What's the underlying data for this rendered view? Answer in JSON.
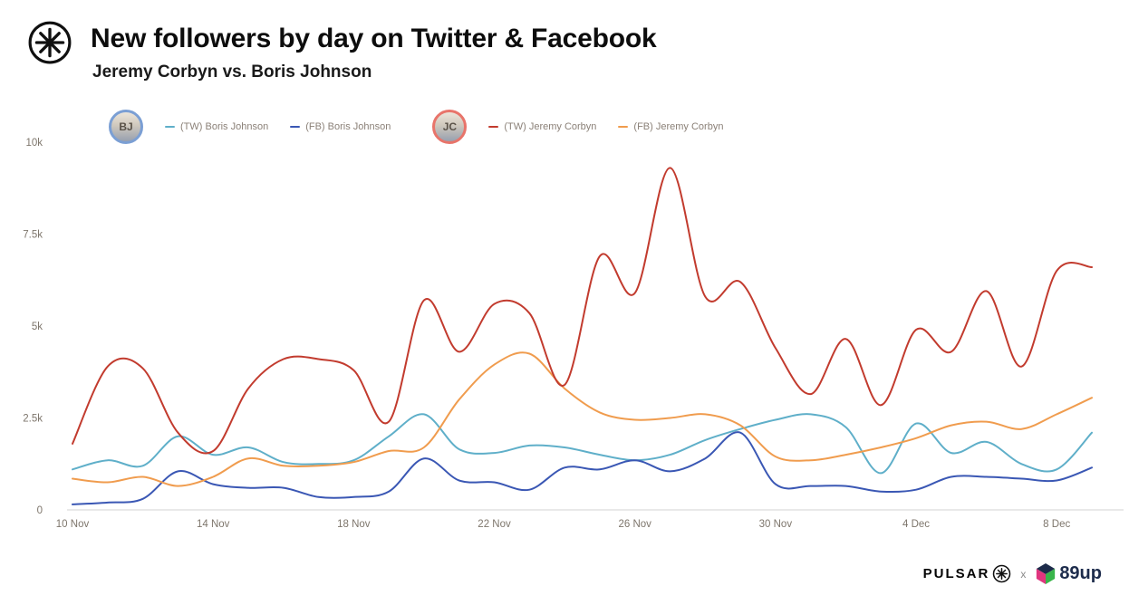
{
  "header": {
    "title": "New followers by day on Twitter & Facebook",
    "subtitle": "Jeremy Corbyn vs. Boris Johnson"
  },
  "legend": {
    "groups": [
      {
        "person": "Boris Johnson",
        "initials": "BJ",
        "ring_color": "#7b9fd4",
        "items": [
          {
            "label": "(TW) Boris Johnson",
            "color": "#5fafc9"
          },
          {
            "label": "(FB) Boris Johnson",
            "color": "#3a57b4"
          }
        ]
      },
      {
        "person": "Jeremy Corbyn",
        "initials": "JC",
        "ring_color": "#e8746a",
        "items": [
          {
            "label": "(TW) Jeremy Corbyn",
            "color": "#c23b2e"
          },
          {
            "label": "(FB) Jeremy Corbyn",
            "color": "#f09c4e"
          }
        ]
      }
    ]
  },
  "footer": {
    "pulsar_label": "PULSAR",
    "separator": "x",
    "partner_label": "89up"
  },
  "chart_data": {
    "type": "line",
    "title": "New followers by day on Twitter & Facebook",
    "subtitle": "Jeremy Corbyn vs. Boris Johnson",
    "grid": false,
    "legend_position": "top",
    "ylim": [
      0,
      10000
    ],
    "y_ticks": [
      0,
      2500,
      5000,
      7500,
      10000
    ],
    "y_tick_labels": [
      "0",
      "2.5k",
      "5k",
      "7.5k",
      "10k"
    ],
    "x_tick_labels": [
      "10 Nov",
      "14 Nov",
      "18 Nov",
      "22 Nov",
      "26 Nov",
      "30 Nov",
      "4 Dec",
      "8 Dec"
    ],
    "x": [
      "10 Nov",
      "11 Nov",
      "12 Nov",
      "13 Nov",
      "14 Nov",
      "15 Nov",
      "16 Nov",
      "17 Nov",
      "18 Nov",
      "19 Nov",
      "20 Nov",
      "21 Nov",
      "22 Nov",
      "23 Nov",
      "24 Nov",
      "25 Nov",
      "26 Nov",
      "27 Nov",
      "28 Nov",
      "29 Nov",
      "30 Nov",
      "1 Dec",
      "2 Dec",
      "3 Dec",
      "4 Dec",
      "5 Dec",
      "6 Dec",
      "7 Dec",
      "8 Dec",
      "9 Dec"
    ],
    "series": [
      {
        "name": "(TW) Boris Johnson",
        "color": "#5fafc9",
        "values": [
          1100,
          1350,
          1200,
          2000,
          1500,
          1700,
          1300,
          1250,
          1350,
          2000,
          2600,
          1650,
          1550,
          1750,
          1700,
          1500,
          1350,
          1500,
          1900,
          2200,
          2450,
          2600,
          2250,
          1000,
          2350,
          1550,
          1850,
          1250,
          1100,
          2100
        ]
      },
      {
        "name": "(FB) Boris Johnson",
        "color": "#3a57b4",
        "values": [
          150,
          200,
          300,
          1050,
          700,
          600,
          600,
          350,
          350,
          500,
          1400,
          800,
          750,
          550,
          1150,
          1100,
          1350,
          1050,
          1400,
          2100,
          700,
          650,
          650,
          500,
          550,
          900,
          900,
          850,
          800,
          1150
        ]
      },
      {
        "name": "(FB) Jeremy Corbyn",
        "color": "#f09c4e",
        "values": [
          850,
          750,
          900,
          650,
          900,
          1400,
          1200,
          1200,
          1300,
          1600,
          1700,
          3000,
          3950,
          4250,
          3300,
          2650,
          2450,
          2500,
          2600,
          2300,
          1450,
          1350,
          1500,
          1700,
          1950,
          2300,
          2400,
          2200,
          2600,
          3050
        ]
      },
      {
        "name": "(TW) Jeremy Corbyn",
        "color": "#c23b2e",
        "values": [
          1800,
          3900,
          3850,
          2100,
          1600,
          3300,
          4100,
          4100,
          3800,
          2400,
          5700,
          4300,
          5600,
          5350,
          3400,
          6900,
          5900,
          9300,
          5800,
          6200,
          4400,
          3150,
          4650,
          2850,
          4900,
          4300,
          5950,
          3900,
          6500,
          6600
        ]
      }
    ]
  }
}
